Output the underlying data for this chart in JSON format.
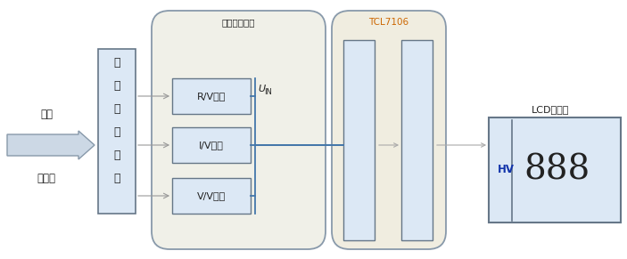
{
  "bg_color": "#ffffff",
  "light_blue_fill": "#dce8f5",
  "light_fill": "#eef3f9",
  "rounded_fill": "#f5f5ee",
  "edge_color": "#8899aa",
  "edge_dark": "#667788",
  "title_params": "参数转换电路",
  "title_TCL": "TCL7106",
  "title_LCD": "LCD显示器",
  "label_input_top": "输入",
  "label_input_bot": "被测量",
  "label_func_line1": "功",
  "label_func_line2": "能",
  "label_func_line3": "量",
  "label_func_line4": "程",
  "label_func_line5": "选",
  "label_func_line6": "择",
  "label_rv": "R/V转换",
  "label_iv": "I/V转换",
  "label_vv": "V/V转换",
  "label_uin_u": "U",
  "label_uin_sub": "IN",
  "label_hv": "HV",
  "label_888": "888",
  "orange_color": "#cc6600",
  "blue_line_color": "#4477aa",
  "dark_color": "#222222",
  "gray_arrow": "#aaaaaa",
  "arrow_fill": "#ccd8e5",
  "tcl_header_fill": "#f0ede0",
  "params_header_fill": "#f0f0e8"
}
